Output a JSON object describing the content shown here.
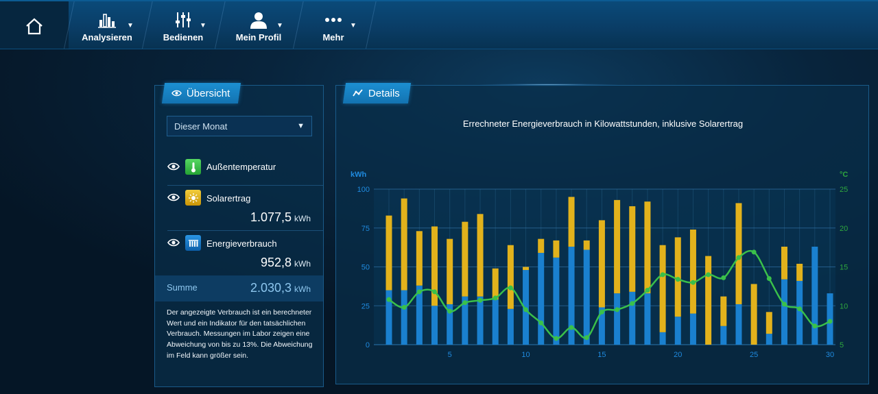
{
  "nav": {
    "home_icon": "home-icon",
    "items": [
      {
        "label": "Analysieren",
        "icon": "bar-chart-icon"
      },
      {
        "label": "Bedienen",
        "icon": "sliders-icon"
      },
      {
        "label": "Mein Profil",
        "icon": "user-icon"
      },
      {
        "label": "Mehr",
        "icon": "more-dots-icon"
      }
    ],
    "caret": "▼"
  },
  "overview": {
    "tab_label": "Übersicht",
    "period": {
      "selected": "Dieser Monat",
      "caret": "▼"
    },
    "items": [
      {
        "label": "Außentemperatur",
        "icon": "thermometer-icon",
        "color": "#3ac04a"
      },
      {
        "label": "Solarertrag",
        "value": "1.077,5",
        "unit": "kWh",
        "icon": "sun-icon",
        "color": "#e2b21c"
      },
      {
        "label": "Energieverbrauch",
        "value": "952,8",
        "unit": "kWh",
        "icon": "radiator-icon",
        "color": "#1a80cf"
      }
    ],
    "sum": {
      "label": "Summe",
      "value": "2.030,3",
      "unit": "kWh"
    },
    "note": "Der angezeigte Verbrauch ist ein berechneter Wert und ein Indikator für den tatsächlichen Verbrauch. Messungen im Labor zeigen eine Abweichung von bis zu 13%. Die Abweichung im Feld kann größer sein."
  },
  "details": {
    "tab_label": "Details"
  },
  "chart_data": {
    "type": "bar",
    "title": "Errechneter Energieverbrauch in Kilowattstunden, inklusive Solarertrag",
    "ylabel": "kWh",
    "y2label": "°C",
    "ylim": [
      0,
      100
    ],
    "y2lim": [
      5,
      25
    ],
    "yticks": [
      0,
      25,
      50,
      75,
      100
    ],
    "y2ticks": [
      5,
      10,
      15,
      20,
      25
    ],
    "xticks": [
      5,
      10,
      15,
      20,
      25,
      30
    ],
    "stacked": true,
    "grid": true,
    "x": [
      1,
      2,
      3,
      4,
      5,
      6,
      7,
      8,
      9,
      10,
      11,
      12,
      13,
      14,
      15,
      16,
      17,
      18,
      19,
      20,
      21,
      22,
      23,
      24,
      25,
      26,
      27,
      28,
      29,
      30
    ],
    "series": [
      {
        "name": "Energieverbrauch",
        "color": "#1a80cf",
        "kind": "bar",
        "values": [
          35,
          35,
          38,
          25,
          26,
          31,
          31,
          29,
          23,
          48,
          59,
          56,
          63,
          61,
          24,
          33,
          34,
          33,
          8,
          18,
          20,
          0,
          12,
          26,
          0,
          7,
          42,
          41,
          63,
          33
        ]
      },
      {
        "name": "Solarertrag",
        "color": "#e2b21c",
        "kind": "bar",
        "values": [
          48,
          59,
          35,
          51,
          42,
          48,
          53,
          20,
          41,
          2,
          9,
          11,
          32,
          6,
          56,
          60,
          55,
          59,
          56,
          51,
          54,
          57,
          19,
          65,
          39,
          14,
          21,
          11,
          0,
          0
        ]
      },
      {
        "name": "Außentemperatur",
        "color": "#3ac04a",
        "kind": "line",
        "values": [
          10.8,
          9.8,
          11.8,
          11.8,
          9.3,
          10.4,
          10.7,
          11.0,
          12.3,
          9.5,
          7.8,
          5.8,
          7.2,
          5.9,
          9.2,
          9.5,
          10.3,
          12.0,
          14.0,
          13.4,
          13.0,
          14.0,
          13.6,
          16.2,
          16.9,
          13.5,
          10.2,
          9.6,
          7.4,
          8.0
        ]
      }
    ]
  }
}
